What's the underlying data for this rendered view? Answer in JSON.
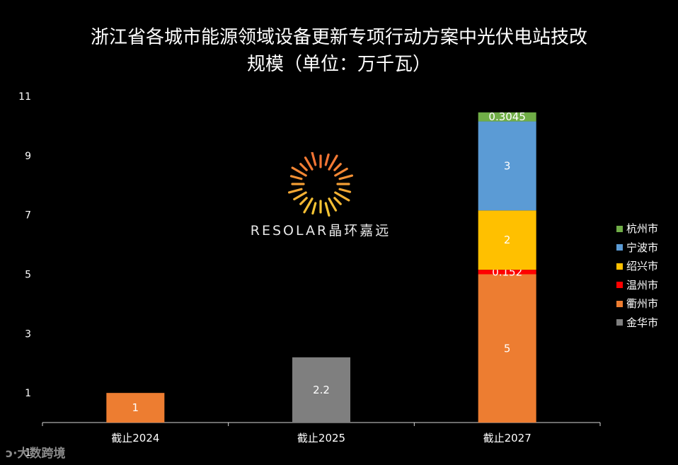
{
  "chart_data": {
    "type": "stacked-bar",
    "title_lines": [
      "浙江省各城市能源领域设备更新专项行动方案中光伏电站技改",
      "规模（单位：万千瓦）"
    ],
    "categories": [
      "截止2024",
      "截止2025",
      "截止2027"
    ],
    "yticks": [
      "-1",
      "1",
      "3",
      "5",
      "7",
      "9",
      "11"
    ],
    "ylim": [
      -1,
      11
    ],
    "grid": false,
    "legend_position": "right",
    "series": [
      {
        "name": "金华市",
        "color": "#7f7f7f",
        "values": [
          0,
          2.2,
          0
        ],
        "labels": [
          "",
          "2.2",
          ""
        ]
      },
      {
        "name": "衢州市",
        "color": "#ed7d31",
        "values": [
          1,
          0,
          5
        ],
        "labels": [
          "1",
          "",
          "5"
        ]
      },
      {
        "name": "温州市",
        "color": "#ff0000",
        "values": [
          0,
          0,
          0.152
        ],
        "labels": [
          "",
          "",
          "0.152"
        ]
      },
      {
        "name": "绍兴市",
        "color": "#ffc000",
        "values": [
          0,
          0,
          2
        ],
        "labels": [
          "",
          "",
          "2"
        ]
      },
      {
        "name": "宁波市",
        "color": "#5b9bd5",
        "values": [
          0,
          0,
          3
        ],
        "labels": [
          "",
          "",
          "3"
        ]
      },
      {
        "name": "杭州市",
        "color": "#70ad47",
        "values": [
          0,
          0,
          0.3045
        ],
        "labels": [
          "",
          "",
          "0.3045"
        ]
      }
    ],
    "legend_order": [
      "杭州市",
      "宁波市",
      "绍兴市",
      "温州市",
      "衢州市",
      "金华市"
    ]
  },
  "watermark": {
    "text": "RESOLAR晶环嘉远"
  },
  "footer": {
    "logo_text": "大数跨境"
  }
}
